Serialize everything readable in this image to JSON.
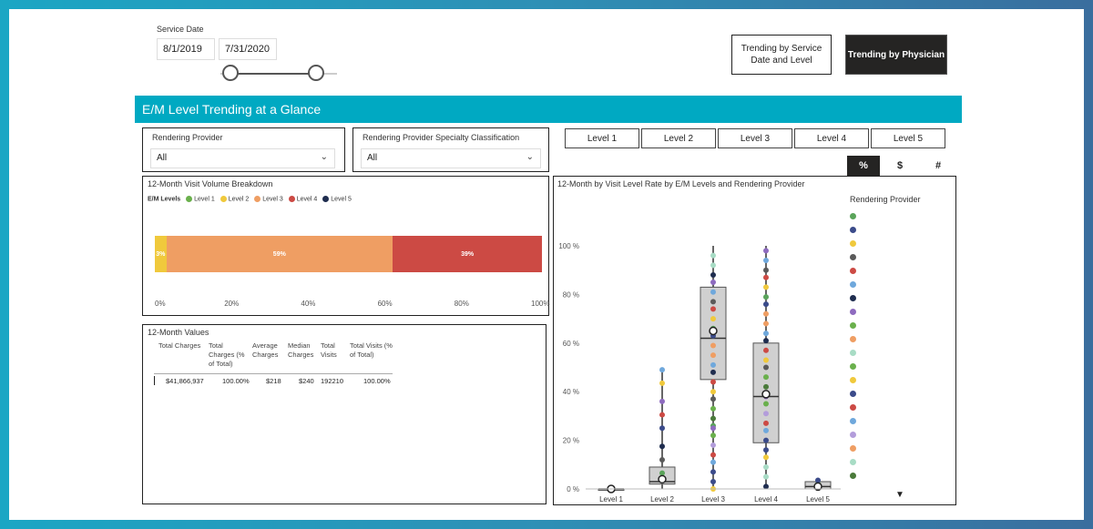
{
  "service_date": {
    "label": "Service Date",
    "start": "8/1/2019",
    "end": "7/31/2020"
  },
  "nav": {
    "trending_service": "Trending by Service Date and Level",
    "trending_physician": "Trending by Physician"
  },
  "banner": {
    "title": "E/M Level Trending at a Glance"
  },
  "filters": {
    "rendering_provider_label": "Rendering Provider",
    "rendering_provider_value": "All",
    "specialty_label": "Rendering Provider Specialty Classification",
    "specialty_value": "All"
  },
  "level_buttons": [
    "Level 1",
    "Level 2",
    "Level 3",
    "Level 4",
    "Level 5"
  ],
  "toggles": [
    "%",
    "$",
    "#"
  ],
  "toggle_selected": "%",
  "volume": {
    "title": "12-Month Visit Volume Breakdown",
    "legend_title": "E/M Levels",
    "legend": [
      {
        "name": "Level 1",
        "color": "#6ab04c"
      },
      {
        "name": "Level 2",
        "color": "#f0c93c"
      },
      {
        "name": "Level 3",
        "color": "#ef9e63"
      },
      {
        "name": "Level 4",
        "color": "#cc4a44"
      },
      {
        "name": "Level 5",
        "color": "#1f2d4f"
      }
    ],
    "x_ticks": [
      "0%",
      "20%",
      "40%",
      "60%",
      "80%",
      "100%"
    ]
  },
  "values_table": {
    "title": "12-Month Values",
    "headers": [
      "Total Charges",
      "Total Charges (% of Total)",
      "Average Charges",
      "Median Charges",
      "Total Visits",
      "Total Visits (% of Total)"
    ],
    "row": [
      "$41,866,937",
      "100.00%",
      "$218",
      "$240",
      "192210",
      "100.00%"
    ]
  },
  "box": {
    "title": "12-Month by Visit Level Rate by E/M Levels and Rendering Provider",
    "y_ticks": [
      "100 %",
      "80 %",
      "60 %",
      "40 %",
      "20 %",
      "0 %"
    ],
    "x_labels": [
      "Level 1",
      "Level 2",
      "Level 3",
      "Level 4",
      "Level 5"
    ],
    "legend_title": "Rendering Provider",
    "legend_colors": [
      "#5aa45a",
      "#3b4b8a",
      "#f0c93c",
      "#5a5a5a",
      "#cc4a44",
      "#6fa8dc",
      "#1f2d4f",
      "#8e6bbf",
      "#6ab04c",
      "#ef9e63",
      "#a8dcc5",
      "#6ab04c",
      "#f0c93c",
      "#3b4b8a",
      "#cc4a44",
      "#6fa8dc",
      "#b39ddb",
      "#ef9e63",
      "#a8dcc5",
      "#4a7a3a"
    ]
  },
  "chart_data": [
    {
      "type": "bar",
      "title": "12-Month Visit Volume Breakdown",
      "orientation": "horizontal-stacked",
      "categories": [
        "Level 1",
        "Level 2",
        "Level 3",
        "Level 4",
        "Level 5"
      ],
      "values": [
        0,
        3,
        59,
        39,
        0
      ],
      "data_labels": [
        "",
        "3%",
        "59%",
        "39%",
        ""
      ],
      "xlim": [
        0,
        100
      ],
      "colors": [
        "#6ab04c",
        "#f0c93c",
        "#ef9e63",
        "#cc4a44",
        "#1f2d4f"
      ]
    },
    {
      "type": "scatter",
      "subtype": "box-plot",
      "title": "12-Month by Visit Level Rate by E/M Levels and Rendering Provider",
      "categories": [
        "Level 1",
        "Level 2",
        "Level 3",
        "Level 4",
        "Level 5"
      ],
      "ylim": [
        0,
        100
      ],
      "boxes": [
        {
          "q1": 0,
          "median": 0,
          "q3": 0,
          "min": 0,
          "max": 1,
          "mean": 0
        },
        {
          "q1": 2,
          "median": 3,
          "q3": 9,
          "min": 0,
          "max": 50,
          "mean": 4
        },
        {
          "q1": 45,
          "median": 62,
          "q3": 83,
          "min": 0,
          "max": 100,
          "mean": 65
        },
        {
          "q1": 19,
          "median": 38,
          "q3": 60,
          "min": 0,
          "max": 100,
          "mean": 39
        },
        {
          "q1": 0,
          "median": 1,
          "q3": 3,
          "min": 0,
          "max": 4,
          "mean": 1
        }
      ]
    }
  ]
}
